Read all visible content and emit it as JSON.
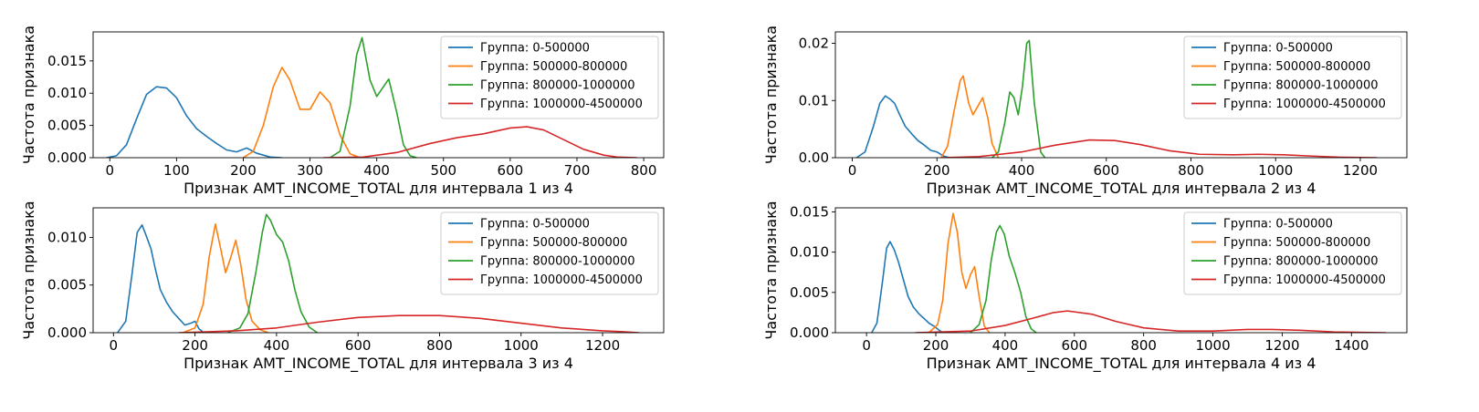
{
  "chart_data": [
    {
      "type": "line",
      "xlabel": "Признак AMT_INCOME_TOTAL для интервала 1 из 4",
      "ylabel": "Частота признака",
      "xlim": [
        -25,
        830
      ],
      "ylim": [
        0,
        0.0195
      ],
      "xticks": [
        0,
        100,
        200,
        300,
        400,
        500,
        600,
        700,
        800
      ],
      "yticks": [
        0.0,
        0.005,
        0.01,
        0.015
      ],
      "ytick_labels": [
        "0.000",
        "0.005",
        "0.010",
        "0.015"
      ],
      "legend_position": "top-right",
      "series": [
        {
          "name": "Группа: 0-500000",
          "color": "#1f77b4",
          "x": [
            -5,
            10,
            25,
            40,
            55,
            70,
            85,
            100,
            115,
            130,
            145,
            160,
            175,
            190,
            205,
            220,
            240,
            258
          ],
          "y": [
            0.0,
            0.0003,
            0.002,
            0.006,
            0.0098,
            0.011,
            0.0108,
            0.0093,
            0.0065,
            0.0045,
            0.0033,
            0.0022,
            0.0012,
            0.0009,
            0.0015,
            0.0007,
            0.0001,
            0.0
          ]
        },
        {
          "name": "Группа: 500000-800000",
          "color": "#ff7f0e",
          "x": [
            200,
            215,
            230,
            245,
            258,
            270,
            285,
            300,
            315,
            330,
            345,
            360,
            375
          ],
          "y": [
            0.0,
            0.001,
            0.005,
            0.011,
            0.014,
            0.012,
            0.0075,
            0.0075,
            0.0102,
            0.0085,
            0.0035,
            0.0006,
            0.0
          ]
        },
        {
          "name": "Группа: 800000-1000000",
          "color": "#2ca02c",
          "x": [
            330,
            345,
            360,
            370,
            378,
            390,
            400,
            410,
            418,
            430,
            440,
            450,
            460
          ],
          "y": [
            0.0,
            0.001,
            0.008,
            0.016,
            0.0186,
            0.012,
            0.0095,
            0.011,
            0.0122,
            0.007,
            0.002,
            0.0003,
            0.0
          ]
        },
        {
          "name": "Группа: 1000000-4500000",
          "color": "#d62728",
          "x": [
            320,
            380,
            430,
            480,
            520,
            560,
            600,
            625,
            650,
            680,
            710,
            740,
            760,
            790
          ],
          "y": [
            0.0,
            0.0001,
            0.0008,
            0.0022,
            0.0031,
            0.0037,
            0.0046,
            0.0048,
            0.0043,
            0.0028,
            0.0013,
            0.0004,
            0.0001,
            0.0
          ]
        }
      ]
    },
    {
      "type": "line",
      "xlabel": "Признак AMT_INCOME_TOTAL для интервала 2 из 4",
      "ylabel": "Частота признака",
      "xlim": [
        -40,
        1310
      ],
      "ylim": [
        0,
        0.022
      ],
      "xticks": [
        0,
        200,
        400,
        600,
        800,
        1000,
        1200
      ],
      "yticks": [
        0.0,
        0.01,
        0.02
      ],
      "ytick_labels": [
        "0.00",
        "0.01",
        "0.02"
      ],
      "legend_position": "top-right",
      "series": [
        {
          "name": "Группа: 0-500000",
          "color": "#1f77b4",
          "x": [
            10,
            30,
            50,
            65,
            78,
            90,
            100,
            112,
            125,
            140,
            155,
            170,
            185,
            200,
            215,
            230
          ],
          "y": [
            0.0,
            0.001,
            0.0055,
            0.0095,
            0.0108,
            0.0102,
            0.0095,
            0.0075,
            0.0055,
            0.0042,
            0.003,
            0.0022,
            0.0013,
            0.001,
            0.0003,
            0.0
          ]
        },
        {
          "name": "Группа: 500000-800000",
          "color": "#ff7f0e",
          "x": [
            210,
            225,
            240,
            255,
            262,
            275,
            285,
            295,
            308,
            320,
            330,
            345
          ],
          "y": [
            0.0,
            0.002,
            0.008,
            0.0135,
            0.0143,
            0.0095,
            0.0075,
            0.0088,
            0.0105,
            0.007,
            0.0025,
            0.0
          ]
        },
        {
          "name": "Группа: 800000-1000000",
          "color": "#2ca02c",
          "x": [
            330,
            345,
            360,
            372,
            382,
            392,
            402,
            412,
            418,
            430,
            445,
            455
          ],
          "y": [
            0.0,
            0.001,
            0.006,
            0.0115,
            0.0105,
            0.0075,
            0.0125,
            0.02,
            0.0205,
            0.0095,
            0.001,
            0.0
          ]
        },
        {
          "name": "Группа: 1000000-4500000",
          "color": "#d62728",
          "x": [
            210,
            300,
            400,
            480,
            560,
            620,
            680,
            750,
            820,
            900,
            960,
            1020,
            1080,
            1150,
            1240
          ],
          "y": [
            0.0,
            0.0002,
            0.001,
            0.0022,
            0.0031,
            0.003,
            0.0023,
            0.0012,
            0.0006,
            0.0005,
            0.0006,
            0.0005,
            0.0003,
            0.0001,
            0.0
          ]
        }
      ]
    },
    {
      "type": "line",
      "xlabel": "Признак AMT_INCOME_TOTAL для интервала 3 из 4",
      "ylabel": "Частота признака",
      "xlim": [
        -50,
        1350
      ],
      "ylim": [
        0,
        0.0131
      ],
      "xticks": [
        0,
        200,
        400,
        600,
        800,
        1000,
        1200
      ],
      "yticks": [
        0.0,
        0.005,
        0.01
      ],
      "ytick_labels": [
        "0.000",
        "0.005",
        "0.010"
      ],
      "legend_position": "top-right",
      "series": [
        {
          "name": "Группа: 0-500000",
          "color": "#1f77b4",
          "x": [
            10,
            30,
            45,
            58,
            70,
            80,
            92,
            102,
            115,
            130,
            145,
            160,
            175,
            190,
            200,
            210,
            222
          ],
          "y": [
            0.0,
            0.0012,
            0.006,
            0.0105,
            0.0113,
            0.0102,
            0.0088,
            0.0068,
            0.0045,
            0.0032,
            0.0022,
            0.0015,
            0.0008,
            0.001,
            0.0012,
            0.0004,
            0.0
          ]
        },
        {
          "name": "Группа: 500000-800000",
          "color": "#ff7f0e",
          "x": [
            170,
            200,
            220,
            235,
            250,
            262,
            275,
            287,
            300,
            312,
            325,
            340,
            360,
            380
          ],
          "y": [
            0.0,
            0.0005,
            0.003,
            0.008,
            0.0114,
            0.009,
            0.0063,
            0.0078,
            0.0097,
            0.0072,
            0.0035,
            0.0012,
            0.0003,
            0.0
          ]
        },
        {
          "name": "Группа: 800000-1000000",
          "color": "#2ca02c",
          "x": [
            280,
            310,
            330,
            350,
            365,
            375,
            385,
            400,
            415,
            430,
            445,
            460,
            480,
            500
          ],
          "y": [
            0.0,
            0.0005,
            0.002,
            0.0065,
            0.0105,
            0.0124,
            0.0118,
            0.0103,
            0.0095,
            0.0075,
            0.0045,
            0.0022,
            0.0006,
            0.0
          ]
        },
        {
          "name": "Группа: 1000000-4500000",
          "color": "#d62728",
          "x": [
            160,
            300,
            400,
            500,
            600,
            700,
            800,
            900,
            1000,
            1100,
            1200,
            1250,
            1290
          ],
          "y": [
            0.0,
            0.0002,
            0.0005,
            0.0011,
            0.0016,
            0.0018,
            0.0018,
            0.0015,
            0.001,
            0.0005,
            0.0002,
            0.0001,
            0.0
          ]
        }
      ]
    },
    {
      "type": "line",
      "xlabel": "Признак AMT_INCOME_TOTAL для интервала 4 из 4",
      "ylabel": "Частота признака",
      "xlim": [
        -90,
        1560
      ],
      "ylim": [
        0,
        0.0155
      ],
      "xticks": [
        0,
        200,
        400,
        600,
        800,
        1000,
        1200,
        1400
      ],
      "yticks": [
        0.0,
        0.005,
        0.01,
        0.015
      ],
      "ytick_labels": [
        "0.000",
        "0.005",
        "0.010",
        "0.015"
      ],
      "legend_position": "top-right",
      "series": [
        {
          "name": "Группа: 0-500000",
          "color": "#1f77b4",
          "x": [
            15,
            30,
            45,
            58,
            68,
            80,
            92,
            105,
            120,
            135,
            150,
            165,
            180,
            195,
            210,
            220
          ],
          "y": [
            0.0,
            0.0012,
            0.006,
            0.0105,
            0.0113,
            0.0103,
            0.0088,
            0.0068,
            0.0045,
            0.0032,
            0.0024,
            0.0018,
            0.0012,
            0.0008,
            0.0003,
            0.0
          ]
        },
        {
          "name": "Группа: 500000-800000",
          "color": "#ff7f0e",
          "x": [
            180,
            205,
            220,
            235,
            250,
            262,
            275,
            287,
            300,
            312,
            325,
            340,
            355
          ],
          "y": [
            0.0,
            0.001,
            0.004,
            0.011,
            0.0148,
            0.0125,
            0.0075,
            0.0055,
            0.0072,
            0.0082,
            0.0045,
            0.0008,
            0.0
          ]
        },
        {
          "name": "Группа: 800000-1000000",
          "color": "#2ca02c",
          "x": [
            300,
            325,
            345,
            360,
            375,
            385,
            398,
            412,
            428,
            445,
            460,
            475,
            490
          ],
          "y": [
            0.0,
            0.001,
            0.004,
            0.009,
            0.0125,
            0.0133,
            0.0122,
            0.0095,
            0.0075,
            0.005,
            0.002,
            0.0005,
            0.0
          ]
        },
        {
          "name": "Группа: 1000000-4500000",
          "color": "#d62728",
          "x": [
            140,
            300,
            400,
            480,
            540,
            580,
            650,
            720,
            800,
            900,
            1000,
            1100,
            1170,
            1250,
            1350,
            1500
          ],
          "y": [
            0.0,
            0.0002,
            0.0009,
            0.0018,
            0.0025,
            0.0027,
            0.0023,
            0.0014,
            0.0006,
            0.0002,
            0.0002,
            0.0004,
            0.0004,
            0.0003,
            0.0001,
            0.0
          ]
        }
      ]
    }
  ]
}
